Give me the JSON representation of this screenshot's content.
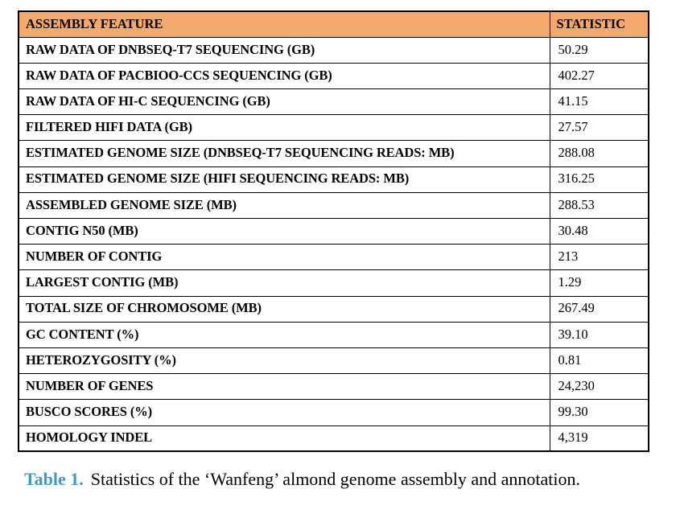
{
  "colors": {
    "header_bg": "#F4A96C",
    "caption_accent": "#3E9AC7",
    "border": "#000000",
    "text": "#000000",
    "page_bg": "#FFFFFF"
  },
  "table": {
    "headers": [
      "ASSEMBLY FEATURE",
      "STATISTIC"
    ],
    "rows": [
      {
        "feature": "RAW DATA OF DNBSEQ-T7 SEQUENCING (GB)",
        "value": "50.29"
      },
      {
        "feature": "RAW DATA OF PACBIOO-CCS SEQUENCING (GB)",
        "value": "402.27"
      },
      {
        "feature": "RAW DATA OF HI-C SEQUENCING (GB)",
        "value": "41.15"
      },
      {
        "feature": "FILTERED HIFI DATA (GB)",
        "value": "27.57"
      },
      {
        "feature": "ESTIMATED GENOME SIZE (DNBSEQ-T7 SEQUENCING READS: MB)",
        "value": "288.08"
      },
      {
        "feature": "ESTIMATED GENOME SIZE (HIFI SEQUENCING READS: MB)",
        "value": "316.25"
      },
      {
        "feature": "ASSEMBLED GENOME SIZE (MB)",
        "value": "288.53"
      },
      {
        "feature": "CONTIG N50 (MB)",
        "value": "30.48"
      },
      {
        "feature": "NUMBER OF CONTIG",
        "value": "213"
      },
      {
        "feature": "LARGEST CONTIG (MB)",
        "value": "1.29"
      },
      {
        "feature": "TOTAL SIZE OF CHROMOSOME (MB)",
        "value": "267.49"
      },
      {
        "feature": "GC CONTENT (%)",
        "value": "39.10"
      },
      {
        "feature": "HETEROZYGOSITY (%)",
        "value": "0.81"
      },
      {
        "feature": "NUMBER OF GENES",
        "value": "24,230"
      },
      {
        "feature": "BUSCO SCORES (%)",
        "value": "99.30"
      },
      {
        "feature": "HOMOLOGY INDEL",
        "value": "4,319"
      }
    ]
  },
  "caption": {
    "label": "Table 1.",
    "text": "Statistics of the ‘Wanfeng’ almond genome assembly and annotation."
  }
}
